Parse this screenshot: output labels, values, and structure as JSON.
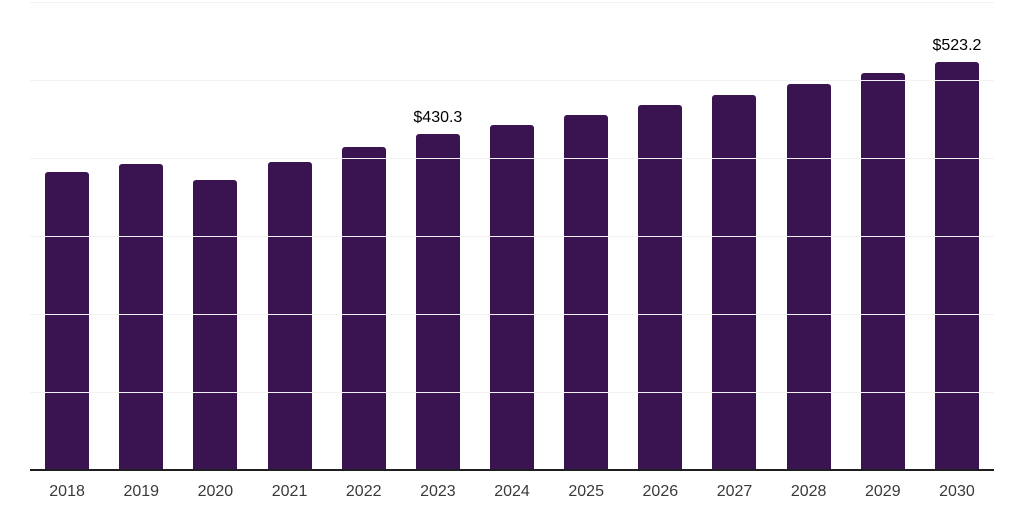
{
  "chart_data": {
    "type": "bar",
    "title": "",
    "xlabel": "",
    "ylabel": "",
    "categories": [
      "2018",
      "2019",
      "2020",
      "2021",
      "2022",
      "2023",
      "2024",
      "2025",
      "2026",
      "2027",
      "2028",
      "2029",
      "2030"
    ],
    "values": [
      382.5,
      392.3,
      372.2,
      395.3,
      414.5,
      430.3,
      442.5,
      455.0,
      467.9,
      481.1,
      494.7,
      508.7,
      523.2
    ],
    "data_labels": [
      "",
      "",
      "",
      "",
      "",
      "$430.3",
      "",
      "",
      "",
      "",
      "",
      "",
      "$523.2"
    ],
    "ylim": [
      0,
      600
    ],
    "gridline_step": 100,
    "grid": "horizontal",
    "legend_position": "none",
    "colors": {
      "bar": "#3A1450",
      "gridline": "#F2F2F2",
      "axis_line": "#1F1F1F",
      "value_label": "#000000",
      "tick_label": "#3A3A3A",
      "background": "#FFFFFF"
    }
  }
}
